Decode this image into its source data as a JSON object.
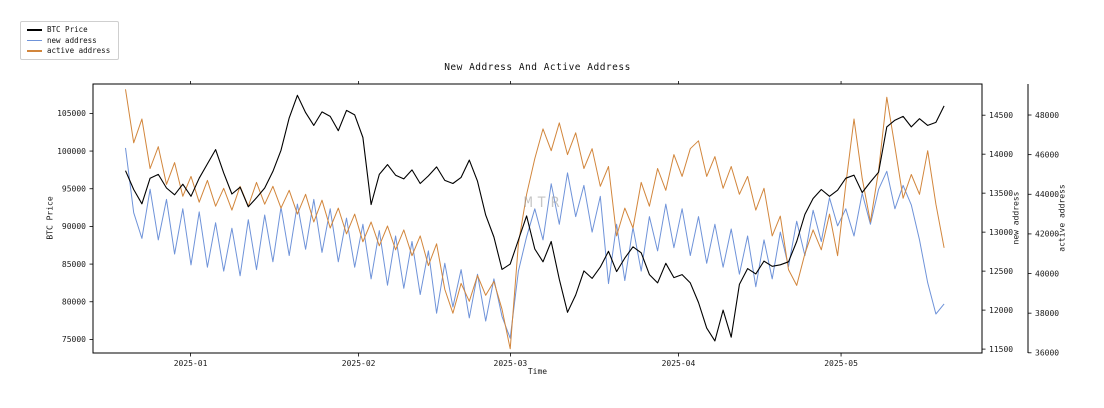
{
  "title": "New Address And Active Address",
  "watermark": "MTR",
  "legend": {
    "items": [
      {
        "label": "BTC Price",
        "color": "#000000"
      },
      {
        "label": "new address",
        "color": "#6f93d9"
      },
      {
        "label": "active address",
        "color": "#d2863c"
      }
    ]
  },
  "axes": {
    "x": {
      "label": "Time",
      "lim_days": [
        -6,
        158
      ],
      "ticks": [
        {
          "day": 12,
          "label": "2025-01"
        },
        {
          "day": 43,
          "label": "2025-02"
        },
        {
          "day": 71,
          "label": "2025-03"
        },
        {
          "day": 102,
          "label": "2025-04"
        },
        {
          "day": 132,
          "label": "2025-05"
        }
      ]
    },
    "left": {
      "label": "BTC Price",
      "lim": [
        73200,
        108900
      ],
      "ticks": [
        75000,
        80000,
        85000,
        90000,
        95000,
        100000,
        105000
      ]
    },
    "right1": {
      "label": "new address",
      "lim": [
        11450,
        14900
      ],
      "ticks": [
        11500,
        12000,
        12500,
        13000,
        13500,
        14000,
        14500
      ]
    },
    "right2": {
      "label": "active address",
      "lim": [
        35990,
        49565
      ],
      "ticks": [
        36000,
        38000,
        40000,
        42000,
        44000,
        46000,
        48000
      ]
    }
  },
  "chart_data": {
    "type": "line",
    "title": "New Address And Active Address",
    "xlabel": "Time",
    "x_start_date": "2024-12-20",
    "x_end_date": "2025-05-20",
    "x_days_span": 151,
    "x_tick_labels": [
      "2025-01",
      "2025-02",
      "2025-03",
      "2025-04",
      "2025-05"
    ],
    "legend_position": "upper-left-outside",
    "grid": false,
    "series": [
      {
        "name": "BTC Price",
        "yaxis": "left",
        "color": "#000000",
        "values": [
          97400,
          94900,
          93000,
          96400,
          96900,
          95100,
          94200,
          95600,
          94000,
          96400,
          98300,
          100200,
          97100,
          94300,
          95200,
          92600,
          93800,
          95100,
          97300,
          100100,
          104400,
          107400,
          105100,
          103400,
          105200,
          104600,
          102700,
          105400,
          104800,
          101800,
          92900,
          96900,
          98200,
          96800,
          96300,
          97500,
          95700,
          96700,
          97900,
          96100,
          95700,
          96500,
          98800,
          96000,
          91500,
          88600,
          84300,
          85000,
          88200,
          91400,
          87000,
          85300,
          88000,
          83000,
          78600,
          80900,
          84100,
          83100,
          84600,
          86700,
          84000,
          85800,
          87300,
          86500,
          83600,
          82500,
          85100,
          83200,
          83600,
          82500,
          79900,
          76500,
          74800,
          78900,
          75300,
          82300,
          84400,
          83700,
          85400,
          84700,
          84900,
          85300,
          88000,
          91600,
          93700,
          94900,
          94000,
          94800,
          96400,
          96800,
          94500,
          95900,
          97200,
          103200,
          104100,
          104600,
          103200,
          104300,
          103400,
          103800,
          106000
        ]
      },
      {
        "name": "new address",
        "yaxis": "right1",
        "color": "#6f93d9",
        "values": [
          14080,
          13250,
          12920,
          13550,
          12900,
          13420,
          12720,
          13300,
          12580,
          13260,
          12550,
          13120,
          12500,
          13050,
          12440,
          13160,
          12520,
          13220,
          12620,
          13320,
          12700,
          13360,
          12780,
          13420,
          12740,
          13300,
          12620,
          13180,
          12550,
          13100,
          12400,
          13020,
          12320,
          12950,
          12280,
          12880,
          12200,
          12760,
          11960,
          12600,
          12040,
          12520,
          11900,
          12460,
          11860,
          12400,
          11920,
          11640,
          12500,
          12940,
          13300,
          12900,
          13620,
          13100,
          13760,
          13200,
          13600,
          13000,
          13460,
          12340,
          13100,
          12380,
          13060,
          12500,
          13200,
          12760,
          13360,
          12800,
          13300,
          12700,
          13200,
          12600,
          13100,
          12550,
          13040,
          12460,
          12950,
          12300,
          12900,
          12400,
          13000,
          12560,
          13140,
          12700,
          13280,
          12880,
          13440,
          13080,
          13300,
          12950,
          13500,
          13100,
          13550,
          13780,
          13300,
          13600,
          13350,
          12900,
          12350,
          11950,
          12080
        ]
      },
      {
        "name": "active address",
        "yaxis": "right2",
        "color": "#d2863c",
        "values": [
          49300,
          46600,
          47800,
          45300,
          46400,
          44500,
          45600,
          43900,
          44900,
          43600,
          44700,
          43400,
          44300,
          43200,
          44400,
          43400,
          44600,
          43500,
          44400,
          43300,
          44200,
          43000,
          44000,
          42600,
          43700,
          42300,
          43300,
          42000,
          43000,
          41600,
          42600,
          41400,
          42400,
          41200,
          42200,
          40900,
          41900,
          40400,
          41500,
          39200,
          38000,
          39500,
          38600,
          39900,
          38900,
          39600,
          38200,
          36200,
          41500,
          44000,
          45800,
          47300,
          46200,
          47600,
          46000,
          47100,
          45300,
          46300,
          44400,
          45400,
          41900,
          43300,
          42300,
          44600,
          43400,
          45300,
          44200,
          46000,
          44900,
          46300,
          46700,
          44900,
          45900,
          44300,
          45400,
          44000,
          44900,
          43200,
          44300,
          41900,
          42900,
          40200,
          39400,
          41000,
          42200,
          41200,
          43000,
          40900,
          44500,
          47800,
          44800,
          42600,
          45200,
          48900,
          46400,
          43800,
          45000,
          44000,
          46200,
          43500,
          41300
        ]
      }
    ]
  }
}
